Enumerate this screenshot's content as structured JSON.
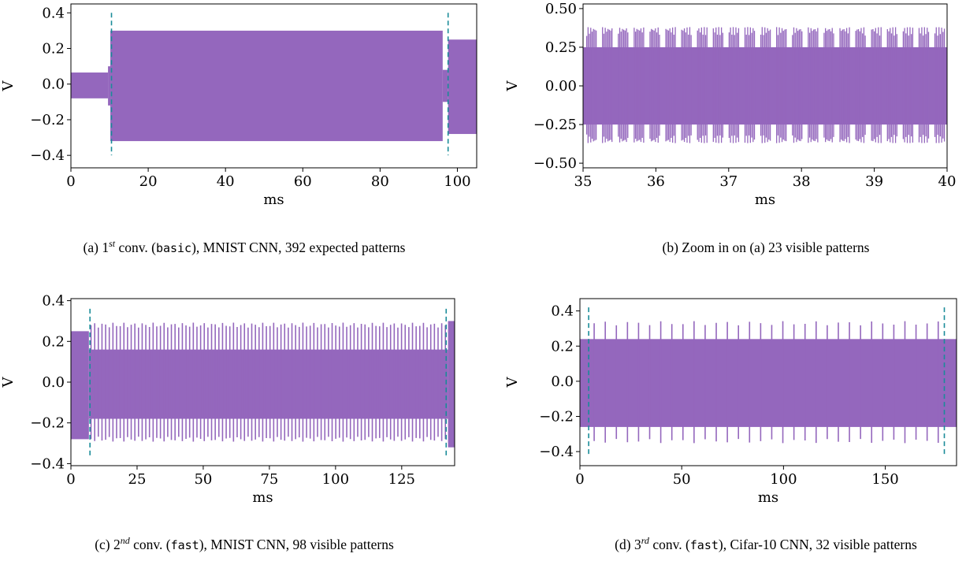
{
  "colors": {
    "signal": "#9467bd",
    "marker": "#1a8c99",
    "axis": "#000000"
  },
  "chart_data": [
    {
      "id": "a",
      "type": "line",
      "xlabel": "ms",
      "ylabel": "V",
      "xlim": [
        0,
        105
      ],
      "ylim": [
        -0.47,
        0.45
      ],
      "xticks": [
        0,
        20,
        40,
        60,
        80,
        100
      ],
      "xtick_labels": [
        "0",
        "20",
        "40",
        "60",
        "80",
        "100"
      ],
      "yticks": [
        -0.4,
        -0.2,
        0.0,
        0.2,
        0.4
      ],
      "ytick_labels": [
        "−0.4",
        "−0.2",
        "0.0",
        "0.2",
        "0.4"
      ],
      "series": [
        {
          "segments": [
            {
              "x0": 0,
              "x1": 9.6,
              "top": 0.065,
              "bottom": -0.08
            },
            {
              "x0": 9.6,
              "x1": 10.2,
              "top": 0.1,
              "bottom": -0.12
            },
            {
              "x0": 10.2,
              "x1": 96.2,
              "top": 0.3,
              "bottom": -0.32
            },
            {
              "x0": 96.2,
              "x1": 97.6,
              "top": 0.08,
              "bottom": -0.1
            },
            {
              "x0": 97.6,
              "x1": 105,
              "top": 0.25,
              "bottom": -0.28
            }
          ],
          "spikes": []
        }
      ],
      "markers": [
        {
          "x": 10.5,
          "y0": -0.4,
          "y1": 0.4
        },
        {
          "x": 97.6,
          "y0": -0.4,
          "y1": 0.4
        }
      ],
      "caption": {
        "prefix": "(a) 1",
        "sup": "st",
        "mid": " conv. (",
        "code": "basic",
        "suffix": "), MNIST CNN, 392 expected patterns"
      }
    },
    {
      "id": "b",
      "type": "line",
      "xlabel": "ms",
      "ylabel": "V",
      "xlim": [
        35,
        40
      ],
      "ylim": [
        -0.53,
        0.53
      ],
      "xticks": [
        35,
        36,
        37,
        38,
        39,
        40
      ],
      "xtick_labels": [
        "35",
        "36",
        "37",
        "38",
        "39",
        "40"
      ],
      "yticks": [
        -0.5,
        -0.25,
        0.0,
        0.25,
        0.5
      ],
      "ytick_labels": [
        "−0.50",
        "−0.25",
        "0.00",
        "0.25",
        "0.50"
      ],
      "series": [
        {
          "segments": [
            {
              "x0": 35,
              "x1": 40,
              "top": 0.25,
              "bottom": -0.25
            }
          ],
          "bursts": {
            "count": 23,
            "start": 35.05,
            "period": 0.2174,
            "width": 0.13,
            "top": 0.38,
            "bottom": -0.37
          }
        }
      ],
      "markers": [],
      "caption": {
        "prefix": "(b) Zoom in on (a) 23 visible patterns",
        "sup": "",
        "mid": "",
        "code": "",
        "suffix": ""
      }
    },
    {
      "id": "c",
      "type": "line",
      "xlabel": "ms",
      "ylabel": "V",
      "xlim": [
        0,
        145
      ],
      "ylim": [
        -0.41,
        0.41
      ],
      "xticks": [
        0,
        25,
        50,
        75,
        100,
        125
      ],
      "xtick_labels": [
        "0",
        "25",
        "50",
        "75",
        "100",
        "125"
      ],
      "yticks": [
        -0.4,
        -0.2,
        0.0,
        0.2,
        0.4
      ],
      "ytick_labels": [
        "−0.4",
        "−0.2",
        "0.0",
        "0.2",
        "0.4"
      ],
      "series": [
        {
          "segments": [
            {
              "x0": 0,
              "x1": 6.8,
              "top": 0.25,
              "bottom": -0.28
            },
            {
              "x0": 6.8,
              "x1": 142.5,
              "top": 0.16,
              "bottom": -0.18
            },
            {
              "x0": 142.5,
              "x1": 145,
              "top": 0.3,
              "bottom": -0.32
            }
          ],
          "spikes": {
            "count": 98,
            "start": 7.6,
            "end": 141.5,
            "top": 0.28,
            "bottom": -0.28
          }
        }
      ],
      "markers": [
        {
          "x": 7.2,
          "y0": -0.36,
          "y1": 0.36
        },
        {
          "x": 141.8,
          "y0": -0.36,
          "y1": 0.36
        }
      ],
      "caption": {
        "prefix": "(c) 2",
        "sup": "nd",
        "mid": " conv. (",
        "code": "fast",
        "suffix": "), MNIST CNN, 98 visible patterns"
      }
    },
    {
      "id": "d",
      "type": "line",
      "xlabel": "ms",
      "ylabel": "V",
      "xlim": [
        0,
        185
      ],
      "ylim": [
        -0.48,
        0.47
      ],
      "xticks": [
        0,
        50,
        100,
        150
      ],
      "xtick_labels": [
        "0",
        "50",
        "100",
        "150"
      ],
      "yticks": [
        -0.4,
        -0.2,
        0.0,
        0.2,
        0.4
      ],
      "ytick_labels": [
        "−0.4",
        "−0.2",
        "0.0",
        "0.2",
        "0.4"
      ],
      "series": [
        {
          "segments": [
            {
              "x0": 0,
              "x1": 185,
              "top": 0.24,
              "bottom": -0.26
            }
          ],
          "spikes": {
            "count": 32,
            "start": 7,
            "end": 176,
            "top": 0.33,
            "bottom": -0.34
          }
        }
      ],
      "markers": [
        {
          "x": 4.3,
          "y0": -0.42,
          "y1": 0.42
        },
        {
          "x": 179,
          "y0": -0.42,
          "y1": 0.42
        }
      ],
      "caption": {
        "prefix": "(d) 3",
        "sup": "rd",
        "mid": " conv. (",
        "code": "fast",
        "suffix": "), Cifar-10 CNN, 32 visible patterns"
      }
    }
  ]
}
